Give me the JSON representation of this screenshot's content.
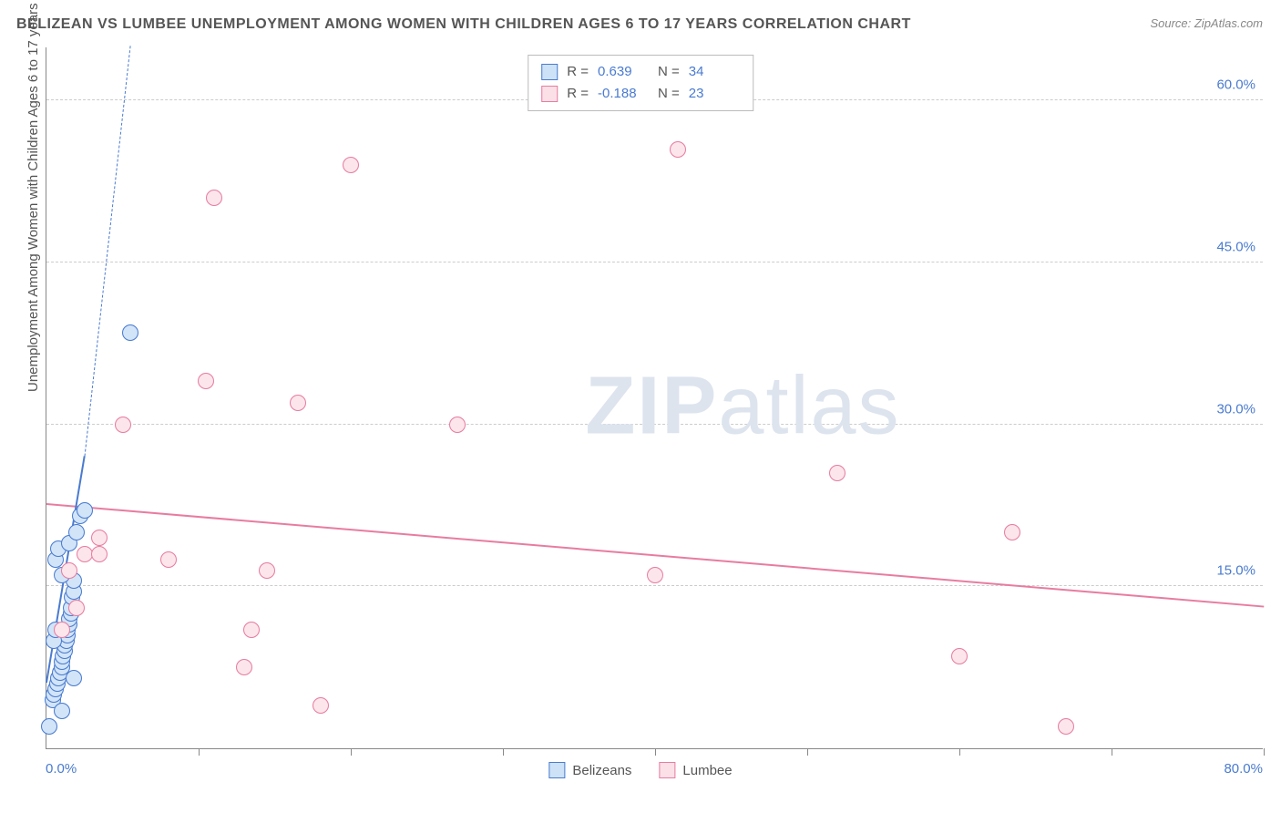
{
  "title": "BELIZEAN VS LUMBEE UNEMPLOYMENT AMONG WOMEN WITH CHILDREN AGES 6 TO 17 YEARS CORRELATION CHART",
  "source": "Source: ZipAtlas.com",
  "y_axis_title": "Unemployment Among Women with Children Ages 6 to 17 years",
  "watermark": "ZIPatlas",
  "chart": {
    "type": "scatter",
    "xlim": [
      0,
      80
    ],
    "ylim": [
      0,
      65
    ],
    "x_origin_label": "0.0%",
    "x_end_label": "80.0%",
    "x_ticks": [
      10,
      20,
      30,
      40,
      50,
      60,
      70,
      80
    ],
    "y_gridlines": [
      15,
      30,
      45,
      60
    ],
    "y_tick_labels": [
      "15.0%",
      "30.0%",
      "45.0%",
      "60.0%"
    ],
    "grid_color": "#cccccc",
    "axis_color": "#888888",
    "background_color": "#ffffff",
    "title_color": "#555555",
    "title_fontsize": 16,
    "label_fontsize": 15,
    "tick_label_color": "#4a7bd0",
    "label_color": "#555555",
    "marker_radius": 9,
    "marker_stroke": 1.5,
    "marker_fill_opacity": 0.35
  },
  "series": [
    {
      "name": "Belizeans",
      "color": "#7fb3e8",
      "stroke": "#4a7bd0",
      "points": [
        [
          0.2,
          2.0
        ],
        [
          0.4,
          4.5
        ],
        [
          0.5,
          5.0
        ],
        [
          0.6,
          5.5
        ],
        [
          0.7,
          6.0
        ],
        [
          0.8,
          6.5
        ],
        [
          0.9,
          7.0
        ],
        [
          1.0,
          7.5
        ],
        [
          1.0,
          8.0
        ],
        [
          1.1,
          8.5
        ],
        [
          1.2,
          9.0
        ],
        [
          1.2,
          9.5
        ],
        [
          1.3,
          10.0
        ],
        [
          1.4,
          10.5
        ],
        [
          1.4,
          11.0
        ],
        [
          1.5,
          11.5
        ],
        [
          1.5,
          12.0
        ],
        [
          1.6,
          12.5
        ],
        [
          1.6,
          13.0
        ],
        [
          1.7,
          14.0
        ],
        [
          1.8,
          14.5
        ],
        [
          1.8,
          15.5
        ],
        [
          1.0,
          16.0
        ],
        [
          0.6,
          17.5
        ],
        [
          0.8,
          18.5
        ],
        [
          1.5,
          19.0
        ],
        [
          2.0,
          20.0
        ],
        [
          2.2,
          21.5
        ],
        [
          2.5,
          22.0
        ],
        [
          0.5,
          10.0
        ],
        [
          0.6,
          11.0
        ],
        [
          1.8,
          6.5
        ],
        [
          5.5,
          38.5
        ],
        [
          1.0,
          3.5
        ]
      ],
      "trend": {
        "x1": 0,
        "y1": 6,
        "x2": 5.5,
        "y2": 65,
        "solid_until_x": 2.5,
        "solid_until_y": 27
      }
    },
    {
      "name": "Lumbee",
      "color": "#f5b8c9",
      "stroke": "#e87ca0",
      "points": [
        [
          1.0,
          11.0
        ],
        [
          2.0,
          13.0
        ],
        [
          2.5,
          18.0
        ],
        [
          3.5,
          19.5
        ],
        [
          3.5,
          18.0
        ],
        [
          5.0,
          30.0
        ],
        [
          8.0,
          17.5
        ],
        [
          10.5,
          34.0
        ],
        [
          11.0,
          51.0
        ],
        [
          13.0,
          7.5
        ],
        [
          13.5,
          11.0
        ],
        [
          14.5,
          16.5
        ],
        [
          16.5,
          32.0
        ],
        [
          18.0,
          4.0
        ],
        [
          20.0,
          54.0
        ],
        [
          27.0,
          30.0
        ],
        [
          40.0,
          16.0
        ],
        [
          41.5,
          55.5
        ],
        [
          52.0,
          25.5
        ],
        [
          60.0,
          8.5
        ],
        [
          63.5,
          20.0
        ],
        [
          67.0,
          2.0
        ],
        [
          1.5,
          16.5
        ]
      ],
      "trend": {
        "x1": 0,
        "y1": 22.5,
        "x2": 80,
        "y2": 13.0
      }
    }
  ],
  "legend_top": [
    {
      "swatch_fill": "#cde2f6",
      "swatch_stroke": "#4a7bd0",
      "r": "0.639",
      "n": "34"
    },
    {
      "swatch_fill": "#fbe0e8",
      "swatch_stroke": "#e87ca0",
      "r": "-0.188",
      "n": "23"
    }
  ],
  "legend_bottom": [
    {
      "label": "Belizeans",
      "swatch_fill": "#cde2f6",
      "swatch_stroke": "#4a7bd0"
    },
    {
      "label": "Lumbee",
      "swatch_fill": "#fbe0e8",
      "swatch_stroke": "#e87ca0"
    }
  ]
}
